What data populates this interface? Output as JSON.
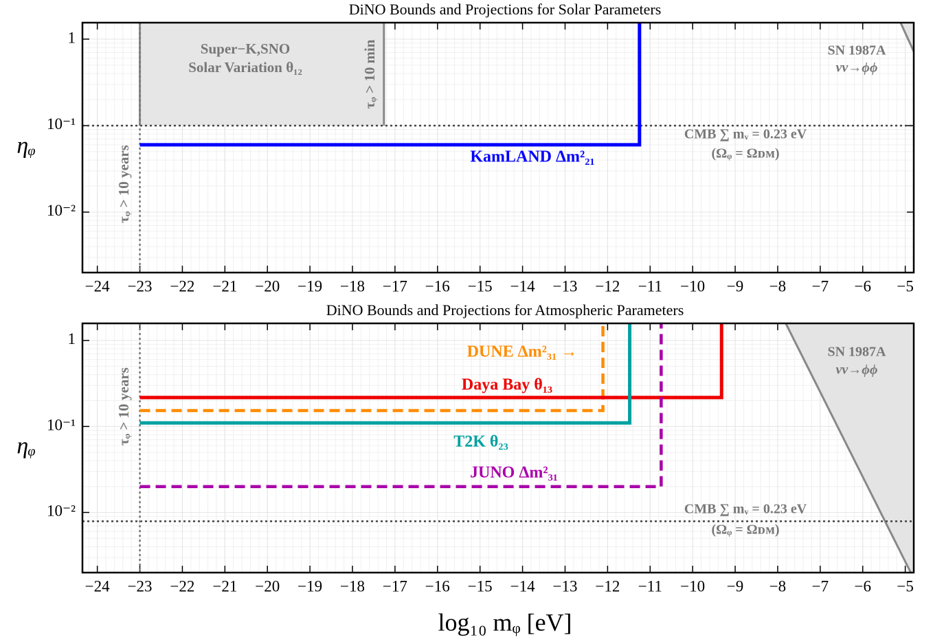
{
  "chart_data": [
    {
      "type": "line",
      "title": "DiNO Bounds and Projections for Solar Parameters",
      "ylabel": "ηᵩ",
      "log_y": true,
      "grid": true,
      "xlim": [
        -24.35,
        -4.8
      ],
      "ylim": [
        0.002,
        1.55
      ],
      "xticks": [
        {
          "value": -24,
          "label": "−24"
        },
        {
          "value": -23,
          "label": "−23"
        },
        {
          "value": -22,
          "label": "−22"
        },
        {
          "value": -21,
          "label": "−21"
        },
        {
          "value": -20,
          "label": "−20"
        },
        {
          "value": -19,
          "label": "−19"
        },
        {
          "value": -18,
          "label": "−18"
        },
        {
          "value": -17,
          "label": "−17"
        },
        {
          "value": -16,
          "label": "−16"
        },
        {
          "value": -15,
          "label": "−15"
        },
        {
          "value": -14,
          "label": "−14"
        },
        {
          "value": -13,
          "label": "−13"
        },
        {
          "value": -12,
          "label": "−12"
        },
        {
          "value": -11,
          "label": "−11"
        },
        {
          "value": -10,
          "label": "−10"
        },
        {
          "value": -9,
          "label": "−9"
        },
        {
          "value": -8,
          "label": "−8"
        },
        {
          "value": -7,
          "label": "−7"
        },
        {
          "value": -6,
          "label": "−6"
        },
        {
          "value": -5,
          "label": "−5"
        }
      ],
      "yticks": [
        1,
        {
          "value": 0.1,
          "label": "10⁻¹"
        },
        {
          "value": 0.01,
          "label": "10⁻²"
        }
      ],
      "series": [
        {
          "name": "KamLAND Δm²₂₁",
          "color": "#0000ff",
          "dashed": false,
          "x": [
            -23,
            -11.25,
            -11.25
          ],
          "values": [
            0.06,
            0.06,
            1.55
          ]
        }
      ],
      "regions": [
        {
          "x": [
            -23,
            -17.26
          ],
          "y": [
            0.1,
            1.55
          ],
          "color": "#e6e6e6",
          "edge": "#888888"
        }
      ],
      "sn_line": {
        "x": [
          -5.11,
          -4.8
        ],
        "values": [
          1.55,
          0.72
        ],
        "color": "#888888"
      },
      "hlines": [
        {
          "value": 0.1,
          "color": "#444444"
        }
      ],
      "vlines": [
        {
          "value": -23,
          "color": "#777777"
        }
      ],
      "annotations": [
        {
          "text": "Super−K,SNO"
        },
        {
          "text": "Solar Variation θ₁₂"
        },
        {
          "text": "τᵩ > 10 min"
        },
        {
          "text": "SN 1987A"
        },
        {
          "text": "νν→ϕϕ"
        },
        {
          "text": "CMB ∑ mᵥ = 0.23 eV"
        },
        {
          "text": "(Ωᵩ = Ωᴅᴍ)"
        },
        {
          "text": "τᵩ > 10 years"
        }
      ]
    },
    {
      "type": "line",
      "title": "DiNO Bounds and Projections for Atmospheric Parameters",
      "ylabel": "ηᵩ",
      "xlabel": "log₁₀ mᵩ [eV]",
      "log_y": true,
      "grid": true,
      "xlim": [
        -24.35,
        -4.8
      ],
      "ylim": [
        0.002,
        1.58
      ],
      "xticks": [
        {
          "value": -24,
          "label": "−24"
        },
        {
          "value": -23,
          "label": "−23"
        },
        {
          "value": -22,
          "label": "−22"
        },
        {
          "value": -21,
          "label": "−21"
        },
        {
          "value": -20,
          "label": "−20"
        },
        {
          "value": -19,
          "label": "−19"
        },
        {
          "value": -18,
          "label": "−18"
        },
        {
          "value": -17,
          "label": "−17"
        },
        {
          "value": -16,
          "label": "−16"
        },
        {
          "value": -15,
          "label": "−15"
        },
        {
          "value": -14,
          "label": "−14"
        },
        {
          "value": -13,
          "label": "−13"
        },
        {
          "value": -12,
          "label": "−12"
        },
        {
          "value": -11,
          "label": "−11"
        },
        {
          "value": -10,
          "label": "−10"
        },
        {
          "value": -9,
          "label": "−9"
        },
        {
          "value": -8,
          "label": "−8"
        },
        {
          "value": -7,
          "label": "−7"
        },
        {
          "value": -6,
          "label": "−6"
        },
        {
          "value": -5,
          "label": "−5"
        }
      ],
      "yticks": [
        1,
        {
          "value": 0.1,
          "label": "10⁻¹"
        },
        {
          "value": 0.01,
          "label": "10⁻²"
        }
      ],
      "series": [
        {
          "name": "DUNE Δm²₃₁ →",
          "color": "#ff8c00",
          "dashed": true,
          "x": [
            -23,
            -12.11,
            -12.11
          ],
          "values": [
            0.153,
            0.153,
            1.58
          ]
        },
        {
          "name": "Daya Bay θ₁₃",
          "color": "#ee0000",
          "dashed": false,
          "x": [
            -23,
            -9.32,
            -9.32
          ],
          "values": [
            0.217,
            0.217,
            1.58
          ]
        },
        {
          "name": "T2K θ₂₃",
          "color": "#00a0a0",
          "dashed": false,
          "x": [
            -23,
            -11.48,
            -11.48
          ],
          "values": [
            0.11,
            0.11,
            1.58
          ]
        },
        {
          "name": "JUNO Δm²₃₁",
          "color": "#aa00aa",
          "dashed": true,
          "x": [
            -23,
            -10.74,
            -10.74
          ],
          "values": [
            0.02,
            0.02,
            1.58
          ]
        }
      ],
      "regions": [],
      "sn_line": {
        "x": [
          -7.81,
          -4.87
        ],
        "values": [
          1.58,
          0.002
        ],
        "color": "#888888"
      },
      "hlines": [
        {
          "value": 0.0079,
          "color": "#444444"
        }
      ],
      "vlines": [
        {
          "value": -23,
          "color": "#777777"
        }
      ],
      "annotations": [
        {
          "text": "SN 1987A"
        },
        {
          "text": "νν→ϕϕ"
        },
        {
          "text": "CMB ∑ mᵥ = 0.23 eV"
        },
        {
          "text": "(Ωᵩ = Ωᴅᴍ)"
        },
        {
          "text": "τᵩ > 10 years"
        }
      ]
    }
  ]
}
